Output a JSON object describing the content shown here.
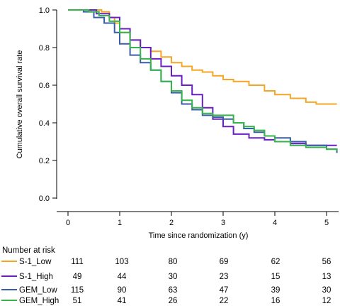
{
  "chart_data": {
    "type": "line",
    "step": true,
    "xlabel": "Time since randomization (y)",
    "ylabel": "Cumulative overall survival rate",
    "xlim": [
      0,
      5.2
    ],
    "ylim": [
      0,
      1.0
    ],
    "xticks": [
      0,
      1,
      2,
      3,
      4,
      5
    ],
    "xtick_labels": [
      "0",
      "1",
      "2",
      "3",
      "4",
      "5"
    ],
    "yticks": [
      0.0,
      0.2,
      0.4,
      0.6,
      0.8,
      1.0
    ],
    "ytick_labels": [
      "0.0",
      "0.2",
      "0.4",
      "0.6",
      "0.8",
      "1.0"
    ],
    "grid": false,
    "series": [
      {
        "name": "S-1_Low",
        "color": "#f5a623",
        "points": [
          [
            0,
            1.0
          ],
          [
            0.6,
            1.0
          ],
          [
            0.65,
            0.99
          ],
          [
            0.8,
            0.96
          ],
          [
            0.9,
            0.93
          ],
          [
            1.0,
            0.88
          ],
          [
            1.2,
            0.84
          ],
          [
            1.4,
            0.8
          ],
          [
            1.6,
            0.78
          ],
          [
            1.8,
            0.75
          ],
          [
            2.0,
            0.72
          ],
          [
            2.2,
            0.7
          ],
          [
            2.4,
            0.68
          ],
          [
            2.6,
            0.67
          ],
          [
            2.8,
            0.65
          ],
          [
            3.0,
            0.63
          ],
          [
            3.2,
            0.62
          ],
          [
            3.5,
            0.6
          ],
          [
            3.8,
            0.57
          ],
          [
            4.0,
            0.55
          ],
          [
            4.3,
            0.53
          ],
          [
            4.6,
            0.51
          ],
          [
            4.8,
            0.5
          ],
          [
            5.2,
            0.5
          ]
        ]
      },
      {
        "name": "S-1_High",
        "color": "#6a1fc4",
        "points": [
          [
            0,
            1.0
          ],
          [
            0.5,
            1.0
          ],
          [
            0.55,
            0.98
          ],
          [
            0.8,
            0.96
          ],
          [
            1.0,
            0.9
          ],
          [
            1.2,
            0.84
          ],
          [
            1.4,
            0.8
          ],
          [
            1.6,
            0.74
          ],
          [
            1.8,
            0.7
          ],
          [
            2.0,
            0.65
          ],
          [
            2.2,
            0.6
          ],
          [
            2.4,
            0.55
          ],
          [
            2.6,
            0.48
          ],
          [
            2.8,
            0.42
          ],
          [
            3.0,
            0.38
          ],
          [
            3.2,
            0.34
          ],
          [
            3.5,
            0.32
          ],
          [
            3.8,
            0.31
          ],
          [
            4.0,
            0.3
          ],
          [
            4.3,
            0.29
          ],
          [
            4.6,
            0.28
          ],
          [
            5.2,
            0.28
          ]
        ]
      },
      {
        "name": "GEM_Low",
        "color": "#3a5da8",
        "points": [
          [
            0,
            1.0
          ],
          [
            0.3,
            0.99
          ],
          [
            0.5,
            0.96
          ],
          [
            0.7,
            0.93
          ],
          [
            0.9,
            0.88
          ],
          [
            1.0,
            0.82
          ],
          [
            1.2,
            0.76
          ],
          [
            1.4,
            0.72
          ],
          [
            1.6,
            0.68
          ],
          [
            1.8,
            0.62
          ],
          [
            2.0,
            0.56
          ],
          [
            2.2,
            0.5
          ],
          [
            2.4,
            0.47
          ],
          [
            2.6,
            0.44
          ],
          [
            2.8,
            0.43
          ],
          [
            3.0,
            0.42
          ],
          [
            3.2,
            0.4
          ],
          [
            3.4,
            0.37
          ],
          [
            3.6,
            0.35
          ],
          [
            3.8,
            0.33
          ],
          [
            4.0,
            0.32
          ],
          [
            4.3,
            0.3
          ],
          [
            4.6,
            0.28
          ],
          [
            5.0,
            0.26
          ],
          [
            5.2,
            0.24
          ]
        ]
      },
      {
        "name": "GEM_High",
        "color": "#33b54a",
        "points": [
          [
            0,
            1.0
          ],
          [
            0.4,
            0.99
          ],
          [
            0.6,
            0.97
          ],
          [
            0.8,
            0.94
          ],
          [
            1.0,
            0.88
          ],
          [
            1.2,
            0.8
          ],
          [
            1.4,
            0.74
          ],
          [
            1.6,
            0.68
          ],
          [
            1.8,
            0.62
          ],
          [
            2.0,
            0.57
          ],
          [
            2.2,
            0.52
          ],
          [
            2.4,
            0.48
          ],
          [
            2.6,
            0.45
          ],
          [
            2.8,
            0.44
          ],
          [
            3.0,
            0.44
          ],
          [
            3.2,
            0.4
          ],
          [
            3.4,
            0.38
          ],
          [
            3.6,
            0.36
          ],
          [
            3.8,
            0.33
          ],
          [
            4.0,
            0.3
          ],
          [
            4.3,
            0.28
          ],
          [
            4.6,
            0.27
          ],
          [
            5.0,
            0.26
          ],
          [
            5.2,
            0.25
          ]
        ]
      }
    ],
    "risk_table": {
      "title": "Number at risk",
      "rows": [
        {
          "name": "S-1_Low",
          "values": [
            "111",
            "103",
            "80",
            "69",
            "62",
            "56"
          ]
        },
        {
          "name": "S-1_High",
          "values": [
            "49",
            "44",
            "30",
            "23",
            "15",
            "13"
          ]
        },
        {
          "name": "GEM_Low",
          "values": [
            "115",
            "90",
            "63",
            "47",
            "39",
            "30"
          ]
        },
        {
          "name": "GEM_High",
          "values": [
            "51",
            "41",
            "26",
            "22",
            "16",
            "12"
          ]
        }
      ]
    }
  }
}
